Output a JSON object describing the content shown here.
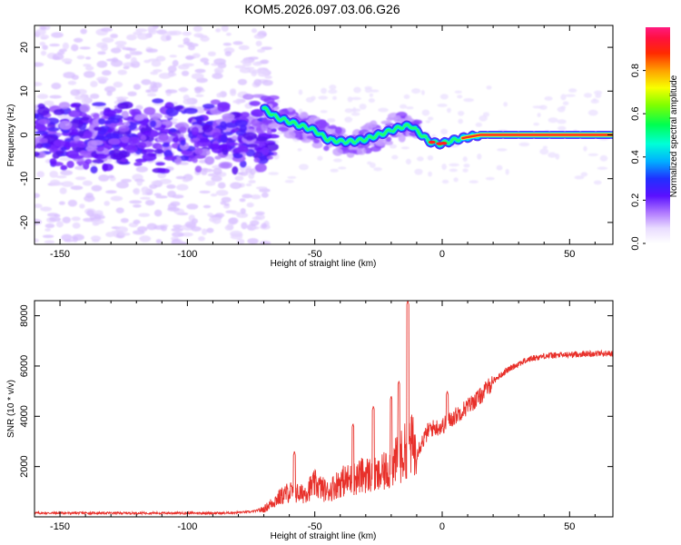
{
  "figure": {
    "title": "KOM5.2026.097.03.06.G26"
  },
  "chart_data": [
    {
      "id": "spectrogram",
      "type": "heatmap",
      "title": "KOM5.2026.097.03.06.G26",
      "xlabel": "Height of straight line (km)",
      "ylabel": "Frequency (Hz)",
      "xlim": [
        -160,
        67
      ],
      "ylim": [
        -25,
        25
      ],
      "x_ticks": [
        -150,
        -100,
        -50,
        0,
        50
      ],
      "x_tick_labels": [
        "-150",
        "-100",
        "-50",
        "0",
        "50"
      ],
      "y_ticks": [
        -20,
        -10,
        0,
        10,
        20
      ],
      "y_tick_labels": [
        "-20",
        "-10",
        "0",
        "10",
        "20"
      ],
      "ridge": {
        "x": [
          -70,
          -65,
          -60,
          -55,
          -50,
          -45,
          -40,
          -35,
          -30,
          -25,
          -20,
          -15,
          -12,
          -10,
          -8,
          -5,
          -2,
          0,
          3,
          6,
          10,
          15,
          20,
          30,
          40,
          50,
          67
        ],
        "y": [
          6,
          4,
          3,
          2,
          1,
          -1,
          -1.5,
          -1.5,
          -1,
          0,
          1,
          2,
          2,
          1,
          0,
          -1.5,
          -2,
          -2,
          -1.5,
          -1,
          -0.5,
          0,
          0,
          0,
          0,
          0,
          0
        ]
      },
      "colorbar": {
        "label": "Normalized spectral amplitude",
        "range": [
          0,
          1
        ],
        "ticks": [
          0,
          0.2,
          0.4,
          0.6,
          0.8
        ],
        "tick_labels": [
          "0.0",
          "0.2",
          "0.4",
          "0.6",
          "0.8"
        ]
      }
    },
    {
      "id": "snr",
      "type": "line",
      "xlabel": "Height of straight line (km)",
      "ylabel": "SNR (10 * v/v)",
      "xlim": [
        -160,
        67
      ],
      "ylim": [
        0,
        8600
      ],
      "x_ticks": [
        -150,
        -100,
        -50,
        0,
        50
      ],
      "x_tick_labels": [
        "-150",
        "-100",
        "-50",
        "0",
        "50"
      ],
      "y_ticks": [
        2000,
        4000,
        6000,
        8000
      ],
      "y_tick_labels": [
        "2000",
        "4000",
        "6000",
        "8000"
      ],
      "series": [
        {
          "name": "SNR",
          "color": "#e8302a",
          "x": [
            -160,
            -140,
            -120,
            -100,
            -85,
            -75,
            -70,
            -65,
            -60,
            -55,
            -50,
            -45,
            -40,
            -35,
            -30,
            -25,
            -20,
            -15,
            -13,
            -10,
            -5,
            0,
            5,
            10,
            15,
            20,
            25,
            30,
            35,
            40,
            50,
            60,
            67
          ],
          "y": [
            150,
            150,
            150,
            150,
            150,
            200,
            300,
            700,
            1000,
            900,
            1300,
            1000,
            1400,
            1500,
            1700,
            1600,
            2000,
            2500,
            3000,
            2600,
            3500,
            3600,
            4000,
            4400,
            4800,
            5400,
            5800,
            6100,
            6300,
            6400,
            6450,
            6500,
            6500
          ]
        }
      ],
      "annotations": [
        {
          "type": "spike",
          "x": -13.5,
          "y": 8600
        },
        {
          "type": "spike",
          "x": -17,
          "y": 5400
        },
        {
          "type": "spike",
          "x": -20,
          "y": 4800
        },
        {
          "type": "spike",
          "x": -27,
          "y": 4400
        },
        {
          "type": "spike",
          "x": -35,
          "y": 3700
        },
        {
          "type": "spike",
          "x": -58,
          "y": 2600
        },
        {
          "type": "spike",
          "x": 2,
          "y": 5000
        }
      ]
    }
  ]
}
